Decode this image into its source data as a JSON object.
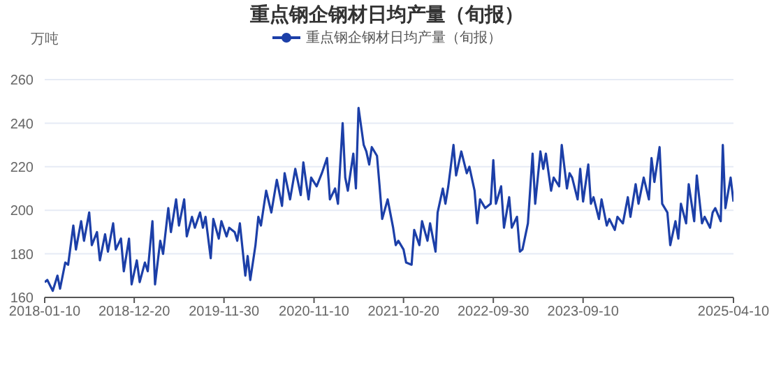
{
  "chart_data": {
    "type": "line",
    "title": "重点钢企钢材日均产量（旬报）",
    "ylabel": "万吨",
    "legend": "top",
    "grid": "y",
    "marker": "none",
    "line_style": "solid",
    "xlim": [
      "2018-01-10",
      "2025-04-10"
    ],
    "xticks": [
      "2018-01-10",
      "2018-12-20",
      "2019-11-30",
      "2020-11-10",
      "2021-10-20",
      "2022-09-30",
      "2023-09-10",
      "2025-04-10"
    ],
    "ylim": [
      160,
      260
    ],
    "yticks": [
      160,
      180,
      200,
      220,
      240,
      260
    ],
    "x": [
      "2018-01-10",
      "2018-01-20",
      "2018-02-10",
      "2018-02-28",
      "2018-03-10",
      "2018-03-30",
      "2018-04-10",
      "2018-04-30",
      "2018-05-10",
      "2018-05-30",
      "2018-06-10",
      "2018-06-30",
      "2018-07-10",
      "2018-07-30",
      "2018-08-10",
      "2018-08-30",
      "2018-09-10",
      "2018-09-30",
      "2018-10-10",
      "2018-10-30",
      "2018-11-10",
      "2018-11-30",
      "2018-12-10",
      "2018-12-30",
      "2019-01-10",
      "2019-01-30",
      "2019-02-10",
      "2019-02-28",
      "2019-03-10",
      "2019-03-30",
      "2019-04-10",
      "2019-04-30",
      "2019-05-10",
      "2019-05-30",
      "2019-06-10",
      "2019-06-30",
      "2019-07-10",
      "2019-07-30",
      "2019-08-10",
      "2019-08-30",
      "2019-09-10",
      "2019-09-20",
      "2019-10-10",
      "2019-10-20",
      "2019-11-10",
      "2019-11-20",
      "2019-12-10",
      "2019-12-20",
      "2020-01-10",
      "2020-01-20",
      "2020-01-30",
      "2020-02-20",
      "2020-02-29",
      "2020-03-10",
      "2020-03-30",
      "2020-04-10",
      "2020-04-20",
      "2020-05-10",
      "2020-05-30",
      "2020-06-20",
      "2020-07-10",
      "2020-07-20",
      "2020-08-10",
      "2020-08-30",
      "2020-09-20",
      "2020-09-30",
      "2020-10-20",
      "2020-10-30",
      "2020-11-20",
      "2020-12-10",
      "2020-12-30",
      "2021-01-10",
      "2021-01-30",
      "2021-02-10",
      "2021-02-28",
      "2021-03-10",
      "2021-03-20",
      "2021-04-10",
      "2021-04-20",
      "2021-04-30",
      "2021-05-20",
      "2021-05-30",
      "2021-06-10",
      "2021-06-20",
      "2021-07-10",
      "2021-07-20",
      "2021-07-30",
      "2021-08-20",
      "2021-09-10",
      "2021-09-20",
      "2021-09-30",
      "2021-10-20",
      "2021-10-30",
      "2021-11-20",
      "2021-11-30",
      "2021-12-20",
      "2021-12-30",
      "2022-01-20",
      "2022-01-30",
      "2022-02-20",
      "2022-02-28",
      "2022-03-20",
      "2022-03-30",
      "2022-04-10",
      "2022-04-30",
      "2022-05-10",
      "2022-05-30",
      "2022-06-20",
      "2022-06-30",
      "2022-07-20",
      "2022-07-30",
      "2022-08-10",
      "2022-08-30",
      "2022-09-20",
      "2022-09-30",
      "2022-10-10",
      "2022-10-30",
      "2022-11-10",
      "2022-11-30",
      "2022-12-10",
      "2022-12-30",
      "2023-01-10",
      "2023-01-20",
      "2023-02-10",
      "2023-02-28",
      "2023-03-10",
      "2023-03-30",
      "2023-04-10",
      "2023-04-20",
      "2023-05-10",
      "2023-05-20",
      "2023-06-10",
      "2023-06-20",
      "2023-07-10",
      "2023-07-20",
      "2023-07-30",
      "2023-08-20",
      "2023-08-30",
      "2023-09-10",
      "2023-09-30",
      "2023-10-10",
      "2023-10-20",
      "2023-11-10",
      "2023-11-20",
      "2023-12-10",
      "2023-12-20",
      "2024-01-10",
      "2024-01-20",
      "2024-02-10",
      "2024-02-29",
      "2024-03-10",
      "2024-03-30",
      "2024-04-10",
      "2024-04-30",
      "2024-05-20",
      "2024-05-30",
      "2024-06-10",
      "2024-06-30",
      "2024-07-10",
      "2024-07-30",
      "2024-08-10",
      "2024-08-30",
      "2024-09-10",
      "2024-09-20",
      "2024-10-10",
      "2024-10-20",
      "2024-11-10",
      "2024-11-20",
      "2024-12-10",
      "2024-12-20",
      "2025-01-10",
      "2025-01-20",
      "2025-01-30",
      "2025-02-20",
      "2025-02-28",
      "2025-03-10",
      "2025-03-30",
      "2025-04-10"
    ],
    "series": [
      {
        "name": "重点钢企钢材日均产量（旬报）",
        "color": "#1c3fa8",
        "values": [
          167,
          168,
          163,
          170,
          164,
          176,
          175,
          193,
          182,
          195,
          186,
          199,
          184,
          190,
          177,
          189,
          181,
          194,
          182,
          187,
          172,
          187,
          166,
          177,
          167,
          176,
          172,
          195,
          166,
          186,
          180,
          201,
          190,
          205,
          193,
          205,
          188,
          197,
          192,
          199,
          192,
          197,
          178,
          196,
          187,
          195,
          188,
          192,
          190,
          186,
          194,
          170,
          179,
          168,
          184,
          197,
          193,
          209,
          199,
          214,
          202,
          217,
          205,
          219,
          207,
          222,
          205,
          215,
          211,
          217,
          224,
          205,
          210,
          203,
          240,
          215,
          209,
          226,
          210,
          247,
          230,
          227,
          221,
          229,
          225,
          211,
          196,
          205,
          192,
          184,
          186,
          182,
          176,
          175,
          191,
          184,
          195,
          186,
          194,
          181,
          199,
          210,
          203,
          211,
          230,
          216,
          227,
          217,
          220,
          209,
          194,
          205,
          201,
          203,
          223,
          203,
          211,
          192,
          206,
          192,
          197,
          181,
          182,
          194,
          226,
          203,
          227,
          219,
          226,
          209,
          215,
          211,
          230,
          210,
          217,
          215,
          205,
          219,
          204,
          221,
          203,
          206,
          196,
          205,
          193,
          196,
          191,
          197,
          194,
          206,
          197,
          212,
          203,
          215,
          205,
          224,
          213,
          229,
          203,
          199,
          184,
          195,
          187,
          203,
          194,
          212,
          195,
          216,
          194,
          197,
          192,
          199,
          201,
          195,
          230,
          201,
          215,
          204
        ]
      }
    ]
  }
}
